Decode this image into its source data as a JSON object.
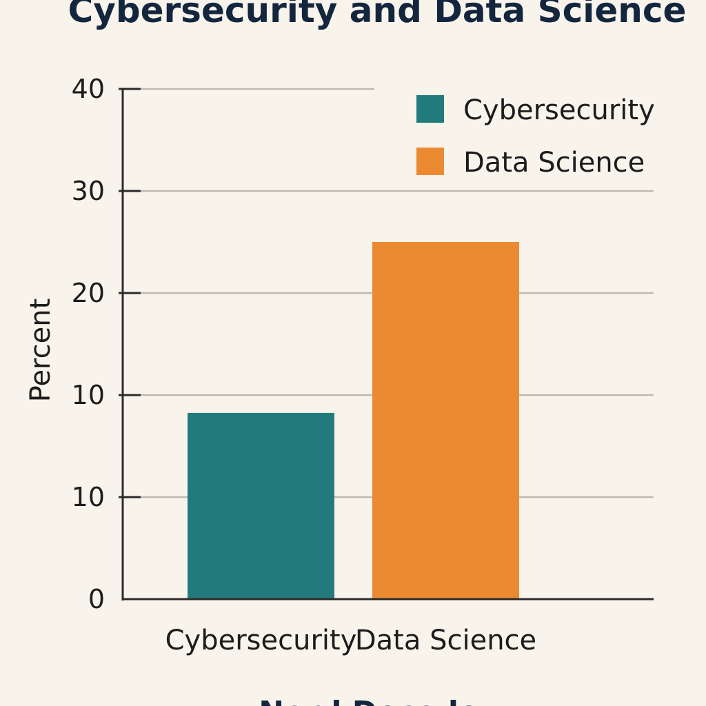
{
  "colors": {
    "background": "#f8f4ec",
    "cybersecurity": "#237a7d",
    "data_science": "#ec8a32",
    "gridline": "#bdbab3",
    "axis": "#2b2b2b",
    "title": "#13263d"
  },
  "chart_data": {
    "type": "bar",
    "title": "Cybersecurity and Data Science",
    "ylabel": "Percent",
    "xlabel": "Nord Decode",
    "ylim": [
      0,
      40
    ],
    "grid": true,
    "legend_position": "top-right",
    "y_tick_labels": [
      "0",
      "10",
      "10",
      "20",
      "30",
      "40"
    ],
    "categories": [
      "Cybersecurity",
      "Data Science"
    ],
    "values": [
      14.6,
      28
    ],
    "legend": [
      {
        "label": "Cybersecurity",
        "color": "#237a7d"
      },
      {
        "label": "Data Science",
        "color": "#ec8a32"
      }
    ]
  }
}
